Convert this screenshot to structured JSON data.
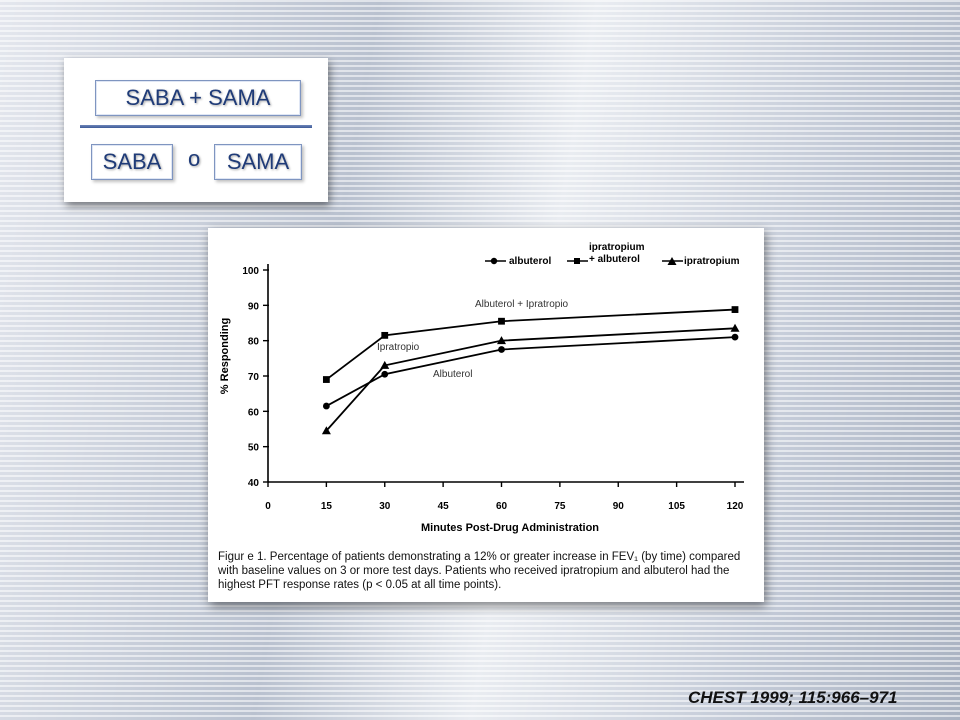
{
  "slide": {
    "top_box_label": "SABA + SAMA",
    "left_box_label": "SABA",
    "or_label": "o",
    "right_box_label": "SAMA",
    "citation": "CHEST 1999; 115:966–971"
  },
  "figure": {
    "caption": "Figur e 1. Percentage of patients demonstrating a 12% or greater increase in FEV₁ (by time) compared with baseline values on 3 or more test days. Patients who received ipratropium and albuterol had the highest PFT response rates (p < 0.05 at all time points)."
  },
  "chart_data": {
    "type": "line",
    "xlabel": "Minutes Post-Drug Administration",
    "ylabel": "% Responding",
    "xlim": [
      0,
      120
    ],
    "ylim": [
      40,
      100
    ],
    "xticks": [
      0,
      15,
      30,
      45,
      60,
      75,
      90,
      105,
      120
    ],
    "yticks": [
      40,
      50,
      60,
      70,
      80,
      90,
      100
    ],
    "x": [
      15,
      30,
      60,
      120
    ],
    "series": [
      {
        "name": "albuterol",
        "marker": "circle",
        "values": [
          61.5,
          70.5,
          77.5,
          81
        ]
      },
      {
        "name": "ipratropium + albuterol",
        "marker": "square",
        "values": [
          69,
          81.5,
          85.5,
          88.8
        ]
      },
      {
        "name": "ipratropium",
        "marker": "triangle",
        "values": [
          54.5,
          73,
          80,
          83.5
        ]
      }
    ],
    "legend_position": "top",
    "legend_labels": {
      "albuterol": "albuterol",
      "combo_line1": "ipratropium",
      "combo_line2": "+ albuterol",
      "ipratropium": "ipratropium"
    },
    "annotations": {
      "combo": "Albuterol + Ipratropio",
      "ipra": "Ipratropio",
      "albu": "Albuterol"
    }
  }
}
